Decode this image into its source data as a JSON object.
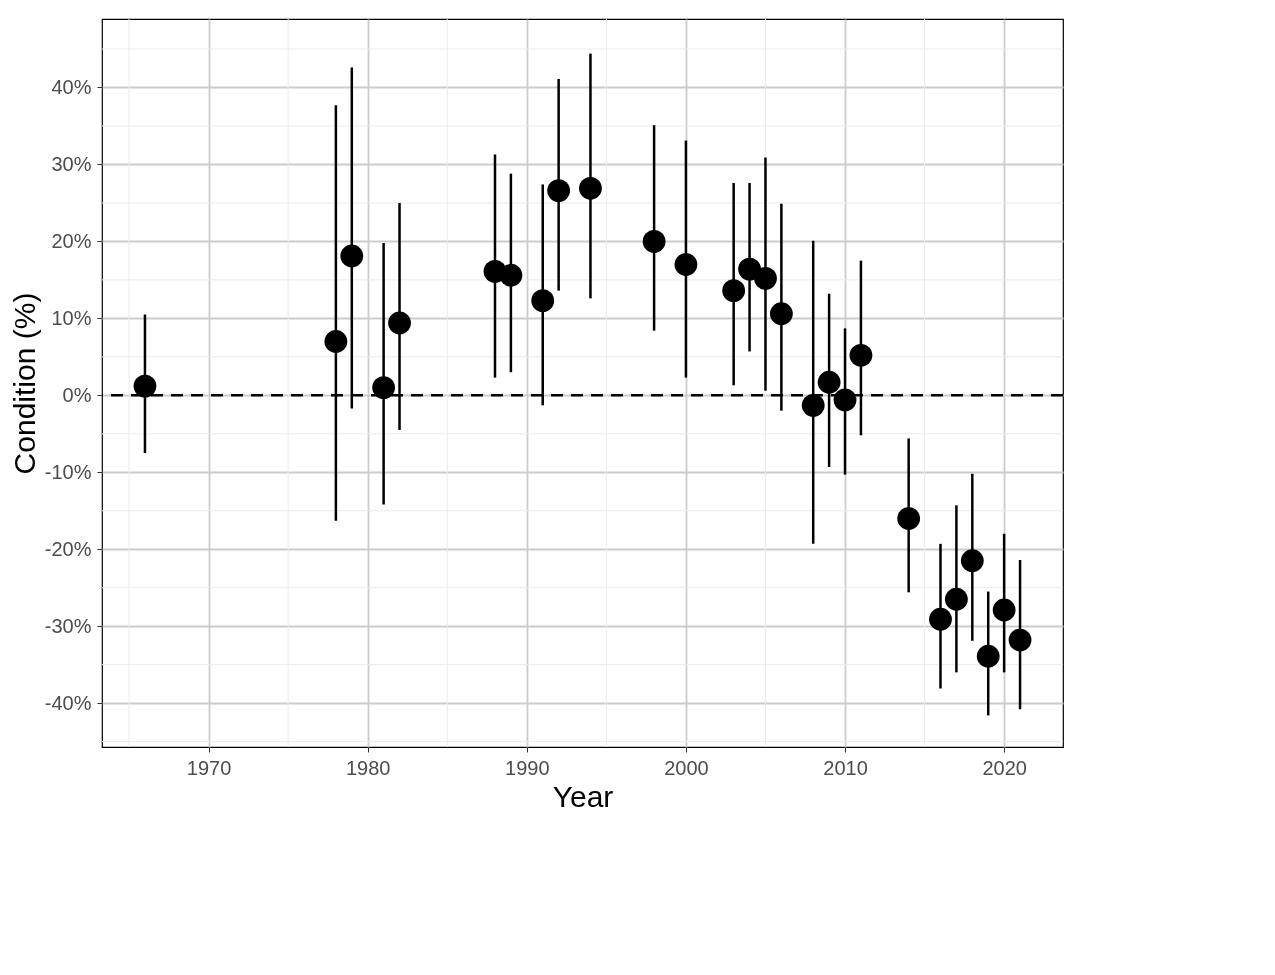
{
  "chart_data": {
    "type": "scatter",
    "xlabel": "Year",
    "ylabel": "Condition (%)",
    "x": [
      1966,
      1978,
      1979,
      1981,
      1982,
      1988,
      1989,
      1991,
      1992,
      1994,
      1998,
      2000,
      2003,
      2004,
      2005,
      2006,
      2008,
      2009,
      2010,
      2011,
      2014,
      2016,
      2017,
      2018,
      2019,
      2020,
      2021
    ],
    "series": [
      {
        "color": "#000000",
        "values": [
          1.2,
          7.0,
          18.1,
          1.0,
          9.4,
          16.1,
          15.6,
          12.3,
          26.6,
          26.9,
          20.0,
          17.0,
          13.6,
          16.4,
          15.2,
          10.6,
          -1.3,
          1.7,
          -0.6,
          5.2,
          -16.0,
          -29.1,
          -26.5,
          -21.5,
          -33.9,
          -27.9,
          -31.8
        ],
        "errors": [
          [
            -7.5,
            10.5
          ],
          [
            -16.3,
            37.7
          ],
          [
            -1.7,
            42.6
          ],
          [
            -14.2,
            19.8
          ],
          [
            -4.5,
            25.0
          ],
          [
            2.3,
            31.3
          ],
          [
            3.0,
            28.8
          ],
          [
            -1.3,
            27.4
          ],
          [
            13.6,
            41.1
          ],
          [
            12.6,
            44.4
          ],
          [
            8.4,
            35.1
          ],
          [
            2.3,
            33.1
          ],
          [
            1.3,
            27.6
          ],
          [
            5.7,
            27.6
          ],
          [
            0.6,
            30.9
          ],
          [
            -2.0,
            24.9
          ],
          [
            -19.3,
            20.1
          ],
          [
            -9.3,
            13.2
          ],
          [
            -10.3,
            8.7
          ],
          [
            -5.2,
            17.5
          ],
          [
            -25.6,
            -5.6
          ],
          [
            -38.1,
            -19.3
          ],
          [
            -36.0,
            -14.3
          ],
          [
            -31.9,
            -10.2
          ],
          [
            -41.6,
            -25.5
          ],
          [
            -36.0,
            -18.0
          ],
          [
            -40.8,
            -21.4
          ]
        ]
      }
    ],
    "xlim": [
      1963.3,
      2023.7
    ],
    "xticks": [
      1970,
      1980,
      1990,
      2000,
      2010,
      2020
    ],
    "ylim": [
      -45.7,
      48.9
    ],
    "yticks": [
      {
        "value": -40,
        "label": "-40%"
      },
      {
        "value": -30,
        "label": "-30%"
      },
      {
        "value": -20,
        "label": "-20%"
      },
      {
        "value": -10,
        "label": "-10%"
      },
      {
        "value": 0,
        "label": "0%"
      },
      {
        "value": 10,
        "label": "10%"
      },
      {
        "value": 20,
        "label": "20%"
      },
      {
        "value": 30,
        "label": "30%"
      },
      {
        "value": 40,
        "label": "40%"
      }
    ],
    "ref_lines": [
      {
        "axis": "y",
        "value": 0,
        "color": "#000000",
        "line_style": "dashed"
      }
    ],
    "grid": true,
    "marker": "circle"
  }
}
